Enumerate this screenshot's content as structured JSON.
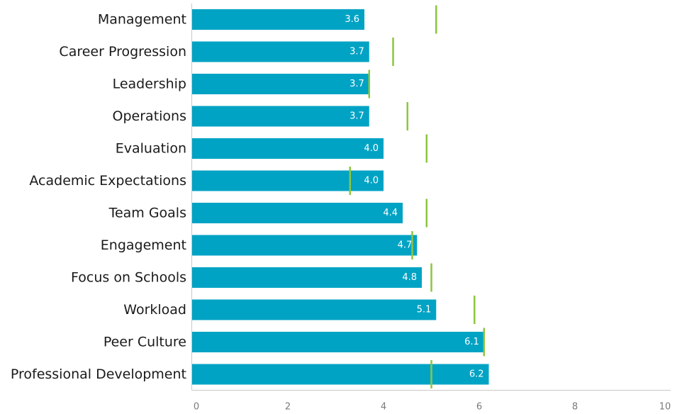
{
  "chart_data": {
    "type": "bar",
    "orientation": "horizontal",
    "categories": [
      "Management",
      "Career Progression",
      "Leadership",
      "Operations",
      "Evaluation",
      "Academic Expectations",
      "Team Goals",
      "Engagement",
      "Focus on Schools",
      "Workload",
      "Peer Culture",
      "Professional Development"
    ],
    "values": [
      3.6,
      3.7,
      3.7,
      3.7,
      4.0,
      4.0,
      4.4,
      4.7,
      4.8,
      5.1,
      6.1,
      6.2
    ],
    "value_labels": [
      "3.6",
      "3.7",
      "3.7",
      "3.7",
      "4.0",
      "4.0",
      "4.4",
      "4.7",
      "4.8",
      "5.1",
      "6.1",
      "6.2"
    ],
    "markers": [
      5.1,
      4.2,
      3.7,
      4.5,
      4.9,
      3.3,
      4.9,
      4.6,
      5.0,
      5.9,
      6.1,
      5.0
    ],
    "xlim": [
      0,
      10
    ],
    "x_ticks": [
      "0",
      "2",
      "4",
      "6",
      "8",
      "10"
    ],
    "bar_color": "#00a3c4",
    "marker_color": "#8dc63f",
    "axis_color": "#c8c8c8",
    "grid": false
  }
}
